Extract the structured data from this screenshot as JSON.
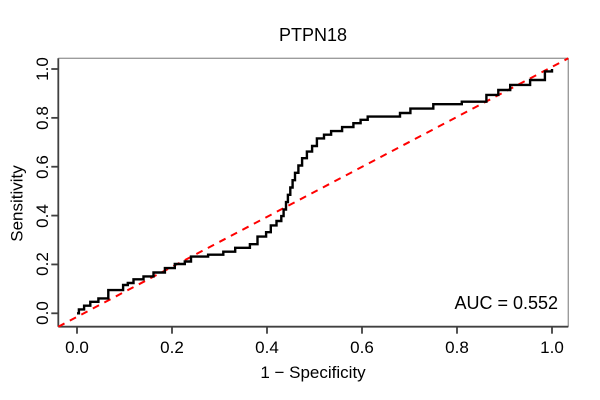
{
  "chart_data": {
    "type": "line",
    "title": "PTPN18",
    "xlabel": "1 − Specificity",
    "ylabel": "Sensitivity",
    "annotation": "AUC = 0.552",
    "auc": 0.552,
    "xlim": [
      0,
      1
    ],
    "ylim": [
      0,
      1
    ],
    "grid": false,
    "legend_position": "none",
    "x_ticks": [
      "0.0",
      "0.2",
      "0.4",
      "0.6",
      "0.8",
      "1.0"
    ],
    "y_ticks": [
      "0.0",
      "0.2",
      "0.4",
      "0.6",
      "0.8",
      "1.0"
    ],
    "x_tick_values": [
      0,
      0.2,
      0.4,
      0.6,
      0.8,
      1.0
    ],
    "y_tick_values": [
      0,
      0.2,
      0.4,
      0.6,
      0.8,
      1.0
    ],
    "series": [
      {
        "name": "ROC curve",
        "type": "step",
        "color": "#000000",
        "line_style": "solid",
        "points": [
          [
            0.0,
            0.0
          ],
          [
            0.004,
            0.016
          ],
          [
            0.015,
            0.031
          ],
          [
            0.028,
            0.047
          ],
          [
            0.045,
            0.061
          ],
          [
            0.066,
            0.095
          ],
          [
            0.097,
            0.116
          ],
          [
            0.107,
            0.124
          ],
          [
            0.119,
            0.139
          ],
          [
            0.14,
            0.151
          ],
          [
            0.161,
            0.167
          ],
          [
            0.185,
            0.185
          ],
          [
            0.206,
            0.202
          ],
          [
            0.227,
            0.212
          ],
          [
            0.24,
            0.232
          ],
          [
            0.276,
            0.24
          ],
          [
            0.308,
            0.252
          ],
          [
            0.333,
            0.268
          ],
          [
            0.364,
            0.283
          ],
          [
            0.38,
            0.314
          ],
          [
            0.398,
            0.332
          ],
          [
            0.408,
            0.36
          ],
          [
            0.42,
            0.378
          ],
          [
            0.43,
            0.398
          ],
          [
            0.435,
            0.425
          ],
          [
            0.44,
            0.455
          ],
          [
            0.444,
            0.485
          ],
          [
            0.449,
            0.515
          ],
          [
            0.454,
            0.545
          ],
          [
            0.459,
            0.575
          ],
          [
            0.466,
            0.605
          ],
          [
            0.474,
            0.635
          ],
          [
            0.484,
            0.662
          ],
          [
            0.495,
            0.685
          ],
          [
            0.505,
            0.716
          ],
          [
            0.52,
            0.731
          ],
          [
            0.535,
            0.746
          ],
          [
            0.558,
            0.762
          ],
          [
            0.582,
            0.778
          ],
          [
            0.597,
            0.792
          ],
          [
            0.612,
            0.805
          ],
          [
            0.68,
            0.82
          ],
          [
            0.702,
            0.838
          ],
          [
            0.75,
            0.856
          ],
          [
            0.81,
            0.866
          ],
          [
            0.862,
            0.894
          ],
          [
            0.887,
            0.914
          ],
          [
            0.912,
            0.935
          ],
          [
            0.954,
            0.955
          ],
          [
            0.985,
            0.99
          ],
          [
            1.0,
            1.0
          ]
        ]
      },
      {
        "name": "reference diagonal",
        "type": "line",
        "color": "#ff0000",
        "line_style": "dashed",
        "points": [
          [
            0,
            0
          ],
          [
            1,
            1
          ]
        ]
      }
    ],
    "colors": {
      "curve": "#000000",
      "reference": "#ff0000",
      "axis_dark": "#404040",
      "axis_light": "#9c9c9c",
      "text": "#000000",
      "background": "#ffffff"
    }
  }
}
